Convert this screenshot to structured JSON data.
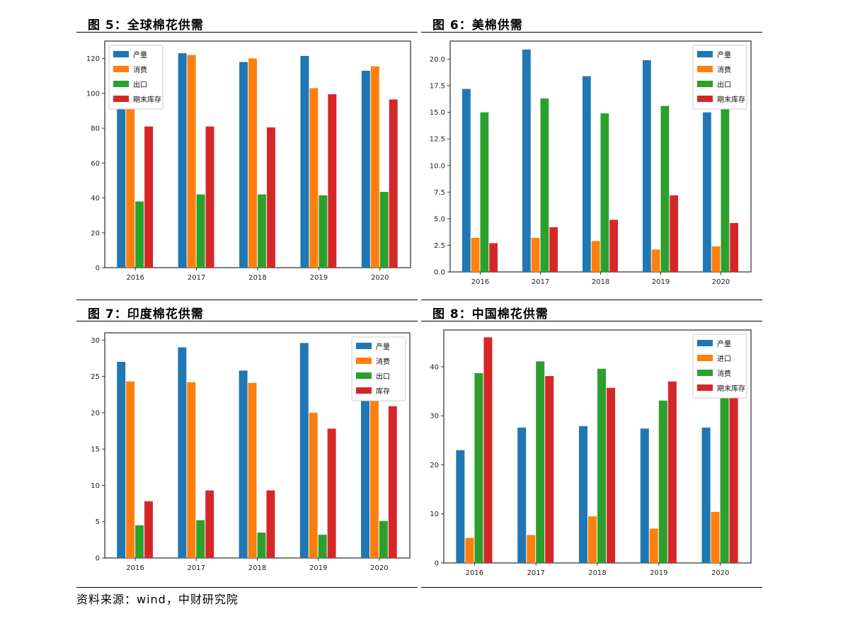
{
  "footer": "资料来源：wind，中财研究院",
  "colors": {
    "c0": "#1f77b4",
    "c1": "#ff7f0e",
    "c2": "#2ca02c",
    "c3": "#d62728"
  },
  "chart_data": [
    {
      "type": "bar",
      "title": "图 5：全球棉花供需",
      "categories": [
        "2016",
        "2017",
        "2018",
        "2019",
        "2020"
      ],
      "ylim": [
        0,
        130
      ],
      "yticks": [
        0,
        20,
        40,
        60,
        80,
        100,
        120
      ],
      "ytick_labels": [
        "0",
        "20",
        "40",
        "60",
        "80",
        "100",
        "120"
      ],
      "legend_position": "top-left",
      "series": [
        {
          "name": "产量",
          "values": [
            106,
            123,
            118,
            121.5,
            113
          ]
        },
        {
          "name": "消费",
          "values": [
            115,
            122,
            120,
            103,
            115.5
          ]
        },
        {
          "name": "出口",
          "values": [
            38,
            42,
            42,
            41.5,
            43.5
          ]
        },
        {
          "name": "期末库存",
          "values": [
            81,
            81,
            80.5,
            99.5,
            96.5
          ]
        }
      ]
    },
    {
      "type": "bar",
      "title": "图 6：美棉供需",
      "categories": [
        "2016",
        "2017",
        "2018",
        "2019",
        "2020"
      ],
      "ylim": [
        0,
        21.7
      ],
      "yticks": [
        0,
        2.5,
        5,
        7.5,
        10,
        12.5,
        15,
        17.5,
        20
      ],
      "ytick_labels": [
        "0.0",
        "2.5",
        "5.0",
        "7.5",
        "10.0",
        "12.5",
        "15.0",
        "17.5",
        "20.0"
      ],
      "legend_position": "top-right",
      "series": [
        {
          "name": "产量",
          "values": [
            17.2,
            20.9,
            18.4,
            19.9,
            15
          ]
        },
        {
          "name": "消费",
          "values": [
            3.2,
            3.2,
            2.9,
            2.1,
            2.4
          ]
        },
        {
          "name": "出口",
          "values": [
            15,
            16.3,
            14.9,
            15.6,
            15.5
          ]
        },
        {
          "name": "期末库存",
          "values": [
            2.7,
            4.2,
            4.9,
            7.2,
            4.6
          ]
        }
      ]
    },
    {
      "type": "bar",
      "title": "图 7：印度棉花供需",
      "categories": [
        "2016",
        "2017",
        "2018",
        "2019",
        "2020"
      ],
      "ylim": [
        0,
        31
      ],
      "yticks": [
        0,
        5,
        10,
        15,
        20,
        25,
        30
      ],
      "ytick_labels": [
        "0",
        "5",
        "10",
        "15",
        "20",
        "25",
        "30"
      ],
      "legend_position": "top-right",
      "series": [
        {
          "name": "产量",
          "values": [
            27,
            29,
            25.8,
            29.6,
            30
          ]
        },
        {
          "name": "消费",
          "values": [
            24.3,
            24.2,
            24.1,
            20,
            22
          ]
        },
        {
          "name": "出口",
          "values": [
            4.5,
            5.2,
            3.5,
            3.2,
            5.1
          ]
        },
        {
          "name": "库存",
          "values": [
            7.8,
            9.3,
            9.3,
            17.8,
            20.9
          ]
        }
      ]
    },
    {
      "type": "bar",
      "title": "图 8：中国棉花供需",
      "categories": [
        "2016",
        "2017",
        "2018",
        "2019",
        "2020"
      ],
      "ylim": [
        0,
        47.5
      ],
      "yticks": [
        0,
        10,
        20,
        30,
        40
      ],
      "ytick_labels": [
        "0",
        "10",
        "20",
        "30",
        "40"
      ],
      "legend_position": "top-right",
      "series": [
        {
          "name": "产量",
          "values": [
            23,
            27.6,
            27.9,
            27.4,
            27.6
          ]
        },
        {
          "name": "进口",
          "values": [
            5.1,
            5.7,
            9.5,
            7,
            10.4
          ]
        },
        {
          "name": "消费",
          "values": [
            38.7,
            41.1,
            39.6,
            33.1,
            37
          ]
        },
        {
          "name": "期末库存",
          "values": [
            46,
            38.1,
            35.7,
            37,
            36
          ]
        }
      ]
    }
  ]
}
